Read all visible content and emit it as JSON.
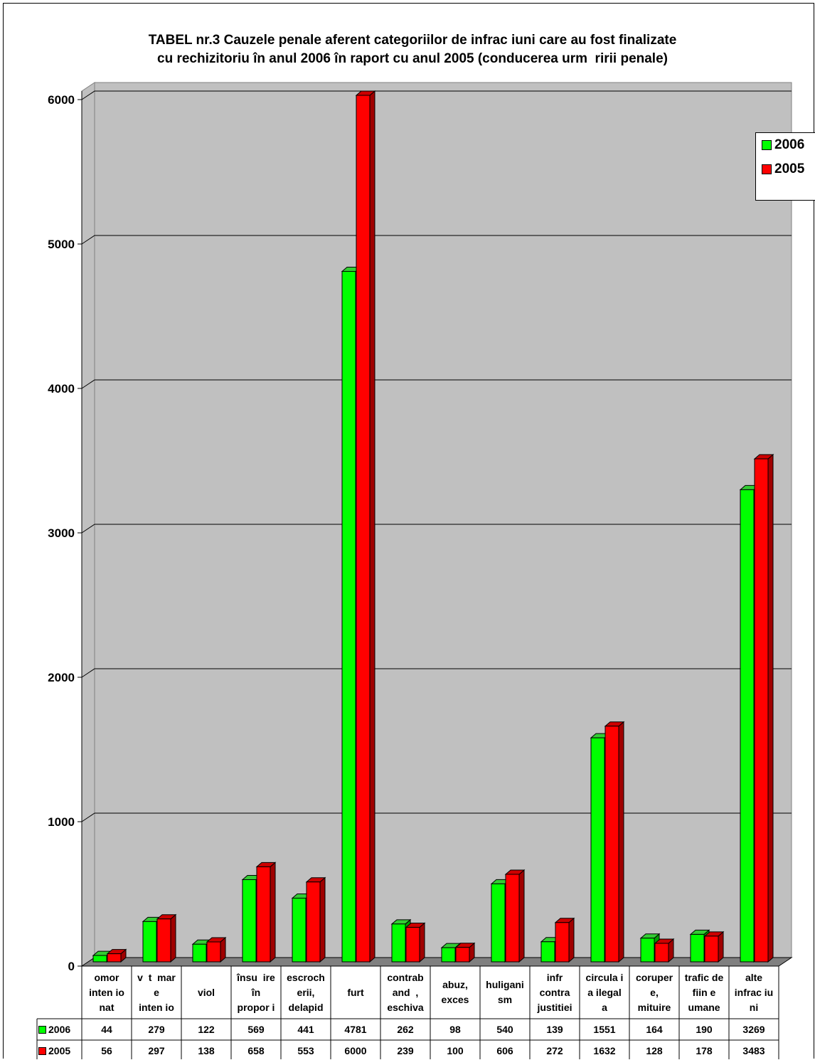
{
  "colors": {
    "series_2006": "#00ff00",
    "series_2005": "#ff0000",
    "plot_bg": "#c0c0c0",
    "floor": "#808080"
  },
  "chart_data": {
    "type": "bar",
    "title": "TABEL nr.3 Cauzele penale aferent categoriilor de infrac iuni care au fost finalizate\ncu rechizitoriu în anul 2006 în raport cu anul 2005 (conducerea urm  ririi penale)",
    "categories": [
      "omor\ninten io\nnat",
      "v  t  mar\ne\ninten io",
      "viol",
      "însu  ire\nîn\npropor i",
      "escroch\nerii,\ndelapid",
      "furt",
      "contrab\nand  ,\neschiva",
      "abuz,\nexces",
      "huligani\nsm",
      "infr\ncontra\njustitiei",
      "circula i\na ilegal\na",
      "coruper\ne,\nmituire",
      "trafic de\nfiin e\numane",
      "alte\ninfrac iu\nni"
    ],
    "series": [
      {
        "name": "2006",
        "values": [
          44,
          279,
          122,
          569,
          441,
          4781,
          262,
          98,
          540,
          139,
          1551,
          164,
          190,
          3269
        ]
      },
      {
        "name": "2005",
        "values": [
          56,
          297,
          138,
          658,
          553,
          6000,
          239,
          100,
          606,
          272,
          1632,
          128,
          178,
          3483
        ]
      }
    ],
    "ylim": [
      0,
      6000
    ],
    "yticks": [
      "0",
      "1000",
      "2000",
      "3000",
      "4000",
      "5000",
      "6000"
    ],
    "grid": true,
    "legend_position": "right",
    "data_table": true
  },
  "legend": {
    "items": [
      "2006",
      "2005"
    ]
  }
}
